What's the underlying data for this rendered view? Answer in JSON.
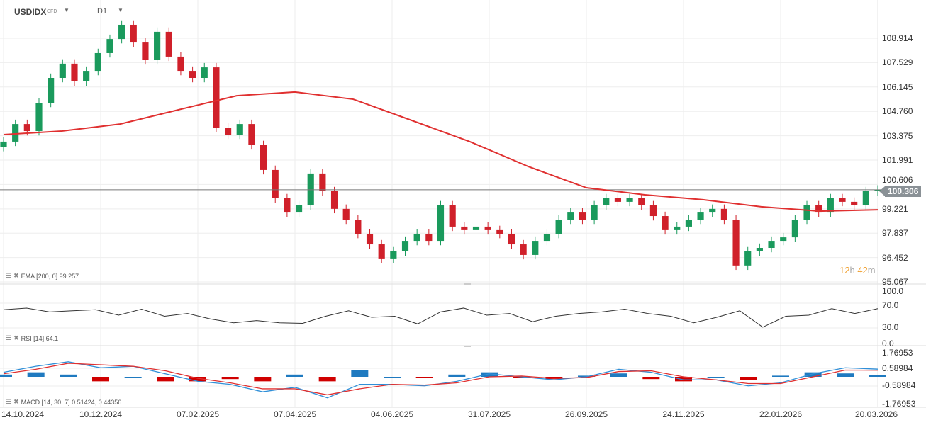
{
  "header": {
    "symbol": "USDIDX",
    "type": "CFD",
    "timeframe": "D1"
  },
  "colors": {
    "up": "#1a9a5c",
    "down": "#d0202a",
    "ema": "#e03030",
    "rsi": "#333333",
    "macd": "#2f8fd8",
    "signal": "#e03030",
    "hist_pos": "#1f7ac0",
    "hist_neg": "#d00000",
    "timer": "#f0a030",
    "last_bg": "#8a9196"
  },
  "last_price": "100.306",
  "timer": {
    "h": "12",
    "h_unit": "h",
    "m": "42",
    "m_unit": "m"
  },
  "indicators": {
    "ema": "EMA [200, 0] 99.257",
    "rsi": "RSI [14] 64.1",
    "macd": "MACD [14, 30, 7] 0.51424, 0.44356"
  },
  "chart_data": [
    {
      "type": "candlestick",
      "title": "USDIDX D1",
      "ylim": [
        94.6,
        110.0
      ],
      "y_ticks": [
        "108.914",
        "107.529",
        "106.145",
        "104.760",
        "103.375",
        "101.991",
        "100.606",
        "99.221",
        "97.837",
        "96.452",
        "95.067"
      ],
      "x_ticks": [
        "14.10.2024",
        "10.12.2024",
        "07.02.2025",
        "07.04.2025",
        "04.06.2025",
        "31.07.2025",
        "26.09.2025",
        "24.11.2025",
        "22.01.2026",
        "20.03.2026"
      ],
      "closes": [
        103.04,
        104.04,
        103.64,
        105.25,
        106.66,
        107.47,
        106.46,
        107.06,
        108.07,
        108.87,
        109.68,
        108.67,
        107.67,
        109.28,
        107.87,
        107.06,
        106.66,
        107.26,
        103.84,
        103.44,
        104.04,
        102.84,
        101.43,
        99.82,
        99.01,
        99.42,
        101.23,
        100.22,
        99.22,
        98.61,
        97.8,
        97.2,
        96.4,
        96.8,
        97.4,
        97.8,
        97.4,
        99.42,
        98.21,
        98.01,
        98.21,
        98.01,
        97.8,
        97.2,
        96.6,
        97.4,
        97.8,
        98.61,
        99.01,
        98.61,
        99.42,
        99.82,
        99.62,
        99.82,
        99.42,
        98.81,
        98.01,
        98.21,
        98.61,
        99.01,
        99.22,
        98.61,
        96.0,
        96.8,
        97.0,
        97.4,
        97.6,
        98.61,
        99.42,
        99.01,
        99.82,
        99.62,
        99.42,
        100.22,
        100.31
      ],
      "ema200": [
        103.44,
        103.64,
        104.04,
        104.85,
        105.65,
        105.86,
        105.45,
        104.25,
        103.04,
        101.63,
        100.42,
        100.02,
        99.74,
        99.34,
        99.09,
        99.17
      ]
    },
    {
      "type": "line",
      "title": "RSI [14]",
      "ylim": [
        0,
        100
      ],
      "y_ticks": [
        "100.0",
        "70.0",
        "30.0",
        "0.0"
      ],
      "values": [
        62,
        65,
        58,
        60,
        62,
        52,
        63,
        50,
        55,
        45,
        38,
        42,
        38,
        37,
        50,
        60,
        48,
        50,
        36,
        58,
        65,
        52,
        55,
        40,
        50,
        55,
        58,
        63,
        55,
        50,
        38,
        48,
        60,
        30,
        50,
        52,
        64,
        55,
        64
      ]
    },
    {
      "type": "line+histogram",
      "title": "MACD [14, 30, 7]",
      "ylim": [
        -1.76953,
        1.76953
      ],
      "y_ticks": [
        "1.76953",
        "0.58984",
        "-0.58984",
        "-1.76953"
      ],
      "macd": [
        0.3,
        0.7,
        1.0,
        0.6,
        0.7,
        0.2,
        -0.3,
        -0.5,
        -1.0,
        -0.7,
        -1.4,
        -0.5,
        -0.5,
        -0.6,
        -0.3,
        0.2,
        0.0,
        -0.2,
        0.0,
        0.5,
        0.3,
        -0.2,
        -0.2,
        -0.6,
        -0.4,
        0.2,
        0.6,
        0.51
      ],
      "signal": [
        0.2,
        0.5,
        0.9,
        0.8,
        0.7,
        0.4,
        -0.1,
        -0.4,
        -0.8,
        -0.8,
        -1.2,
        -0.8,
        -0.5,
        -0.55,
        -0.4,
        0.0,
        0.05,
        -0.1,
        -0.05,
        0.35,
        0.4,
        0.0,
        -0.2,
        -0.45,
        -0.45,
        0.0,
        0.45,
        0.44
      ]
    }
  ]
}
